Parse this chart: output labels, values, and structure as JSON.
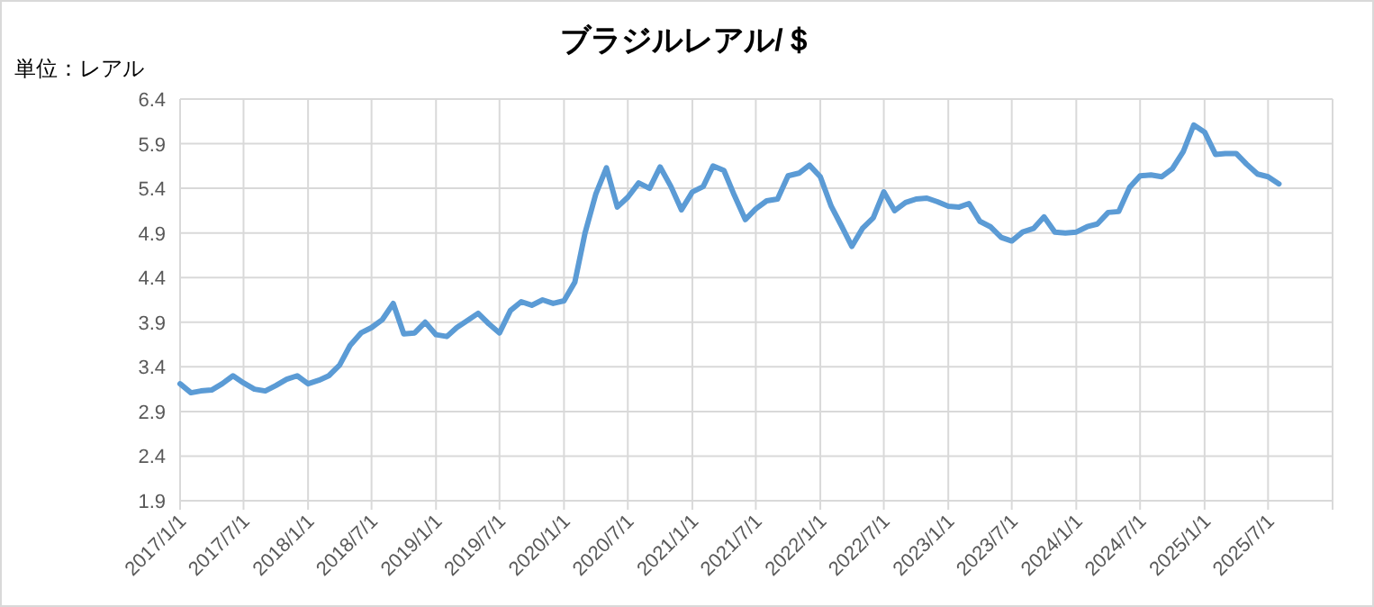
{
  "chart_data": {
    "type": "line",
    "title": "ブラジルレアル/＄",
    "ylabel": "単位：レアル",
    "x": [
      "2017-01",
      "2017-02",
      "2017-03",
      "2017-04",
      "2017-05",
      "2017-06",
      "2017-07",
      "2017-08",
      "2017-09",
      "2017-10",
      "2017-11",
      "2017-12",
      "2018-01",
      "2018-02",
      "2018-03",
      "2018-04",
      "2018-05",
      "2018-06",
      "2018-07",
      "2018-08",
      "2018-09",
      "2018-10",
      "2018-11",
      "2018-12",
      "2019-01",
      "2019-02",
      "2019-03",
      "2019-04",
      "2019-05",
      "2019-06",
      "2019-07",
      "2019-08",
      "2019-09",
      "2019-10",
      "2019-11",
      "2019-12",
      "2020-01",
      "2020-02",
      "2020-03",
      "2020-04",
      "2020-05",
      "2020-06",
      "2020-07",
      "2020-08",
      "2020-09",
      "2020-10",
      "2020-11",
      "2020-12",
      "2021-01",
      "2021-02",
      "2021-03",
      "2021-04",
      "2021-05",
      "2021-06",
      "2021-07",
      "2021-08",
      "2021-09",
      "2021-10",
      "2021-11",
      "2021-12",
      "2022-01",
      "2022-02",
      "2022-03",
      "2022-04",
      "2022-05",
      "2022-06",
      "2022-07",
      "2022-08",
      "2022-09",
      "2022-10",
      "2022-11",
      "2022-12",
      "2023-01",
      "2023-02",
      "2023-03",
      "2023-04",
      "2023-05",
      "2023-06",
      "2023-07",
      "2023-08",
      "2023-09",
      "2023-10",
      "2023-11",
      "2023-12",
      "2024-01",
      "2024-02",
      "2024-03",
      "2024-04",
      "2024-05",
      "2024-06",
      "2024-07",
      "2024-08",
      "2024-09",
      "2024-10",
      "2024-11",
      "2024-12",
      "2025-01",
      "2025-02",
      "2025-03",
      "2025-04",
      "2025-05",
      "2025-06",
      "2025-07",
      "2025-08"
    ],
    "series": [
      {
        "color": "#5b9bd5",
        "values": [
          3.21,
          3.11,
          3.13,
          3.14,
          3.21,
          3.3,
          3.22,
          3.15,
          3.13,
          3.19,
          3.26,
          3.3,
          3.21,
          3.25,
          3.3,
          3.42,
          3.64,
          3.78,
          3.84,
          3.93,
          4.11,
          3.77,
          3.78,
          3.9,
          3.76,
          3.74,
          3.84,
          3.92,
          4.0,
          3.88,
          3.78,
          4.03,
          4.13,
          4.09,
          4.15,
          4.11,
          4.14,
          4.35,
          4.9,
          5.34,
          5.63,
          5.19,
          5.3,
          5.46,
          5.4,
          5.64,
          5.42,
          5.16,
          5.36,
          5.42,
          5.65,
          5.6,
          5.32,
          5.05,
          5.17,
          5.26,
          5.28,
          5.54,
          5.57,
          5.66,
          5.53,
          5.2,
          4.99,
          4.75,
          4.95,
          5.07,
          5.36,
          5.15,
          5.24,
          5.28,
          5.29,
          5.25,
          5.2,
          5.19,
          5.23,
          5.03,
          4.97,
          4.85,
          4.81,
          4.91,
          4.95,
          5.08,
          4.91,
          4.9,
          4.91,
          4.97,
          5.0,
          5.13,
          5.14,
          5.41,
          5.54,
          5.55,
          5.53,
          5.62,
          5.81,
          6.11,
          6.03,
          5.78,
          5.79,
          5.79,
          5.67,
          5.56,
          5.53,
          5.45
        ]
      }
    ],
    "xlim": [
      "2017-01-01",
      "2026-01-01"
    ],
    "xticks": [
      {
        "value": "2017-01-01",
        "label": "2017/1/1"
      },
      {
        "value": "2017-07-01",
        "label": "2017/7/1"
      },
      {
        "value": "2018-01-01",
        "label": "2018/1/1"
      },
      {
        "value": "2018-07-01",
        "label": "2018/7/1"
      },
      {
        "value": "2019-01-01",
        "label": "2019/1/1"
      },
      {
        "value": "2019-07-01",
        "label": "2019/7/1"
      },
      {
        "value": "2020-01-01",
        "label": "2020/1/1"
      },
      {
        "value": "2020-07-01",
        "label": "2020/7/1"
      },
      {
        "value": "2021-01-01",
        "label": "2021/1/1"
      },
      {
        "value": "2021-07-01",
        "label": "2021/7/1"
      },
      {
        "value": "2022-01-01",
        "label": "2022/1/1"
      },
      {
        "value": "2022-07-01",
        "label": "2022/7/1"
      },
      {
        "value": "2023-01-01",
        "label": "2023/1/1"
      },
      {
        "value": "2023-07-01",
        "label": "2023/7/1"
      },
      {
        "value": "2024-01-01",
        "label": "2024/1/1"
      },
      {
        "value": "2024-07-01",
        "label": "2024/7/1"
      },
      {
        "value": "2025-01-01",
        "label": "2025/1/1"
      },
      {
        "value": "2025-07-01",
        "label": "2025/7/1"
      },
      {
        "value": "2026-01-01",
        "label": null
      }
    ],
    "ylim": [
      1.9,
      6.4
    ],
    "yticks": [
      1.9,
      2.4,
      2.9,
      3.4,
      3.9,
      4.4,
      4.9,
      5.4,
      5.9,
      6.4
    ],
    "grid": true,
    "line_style": "solid"
  }
}
